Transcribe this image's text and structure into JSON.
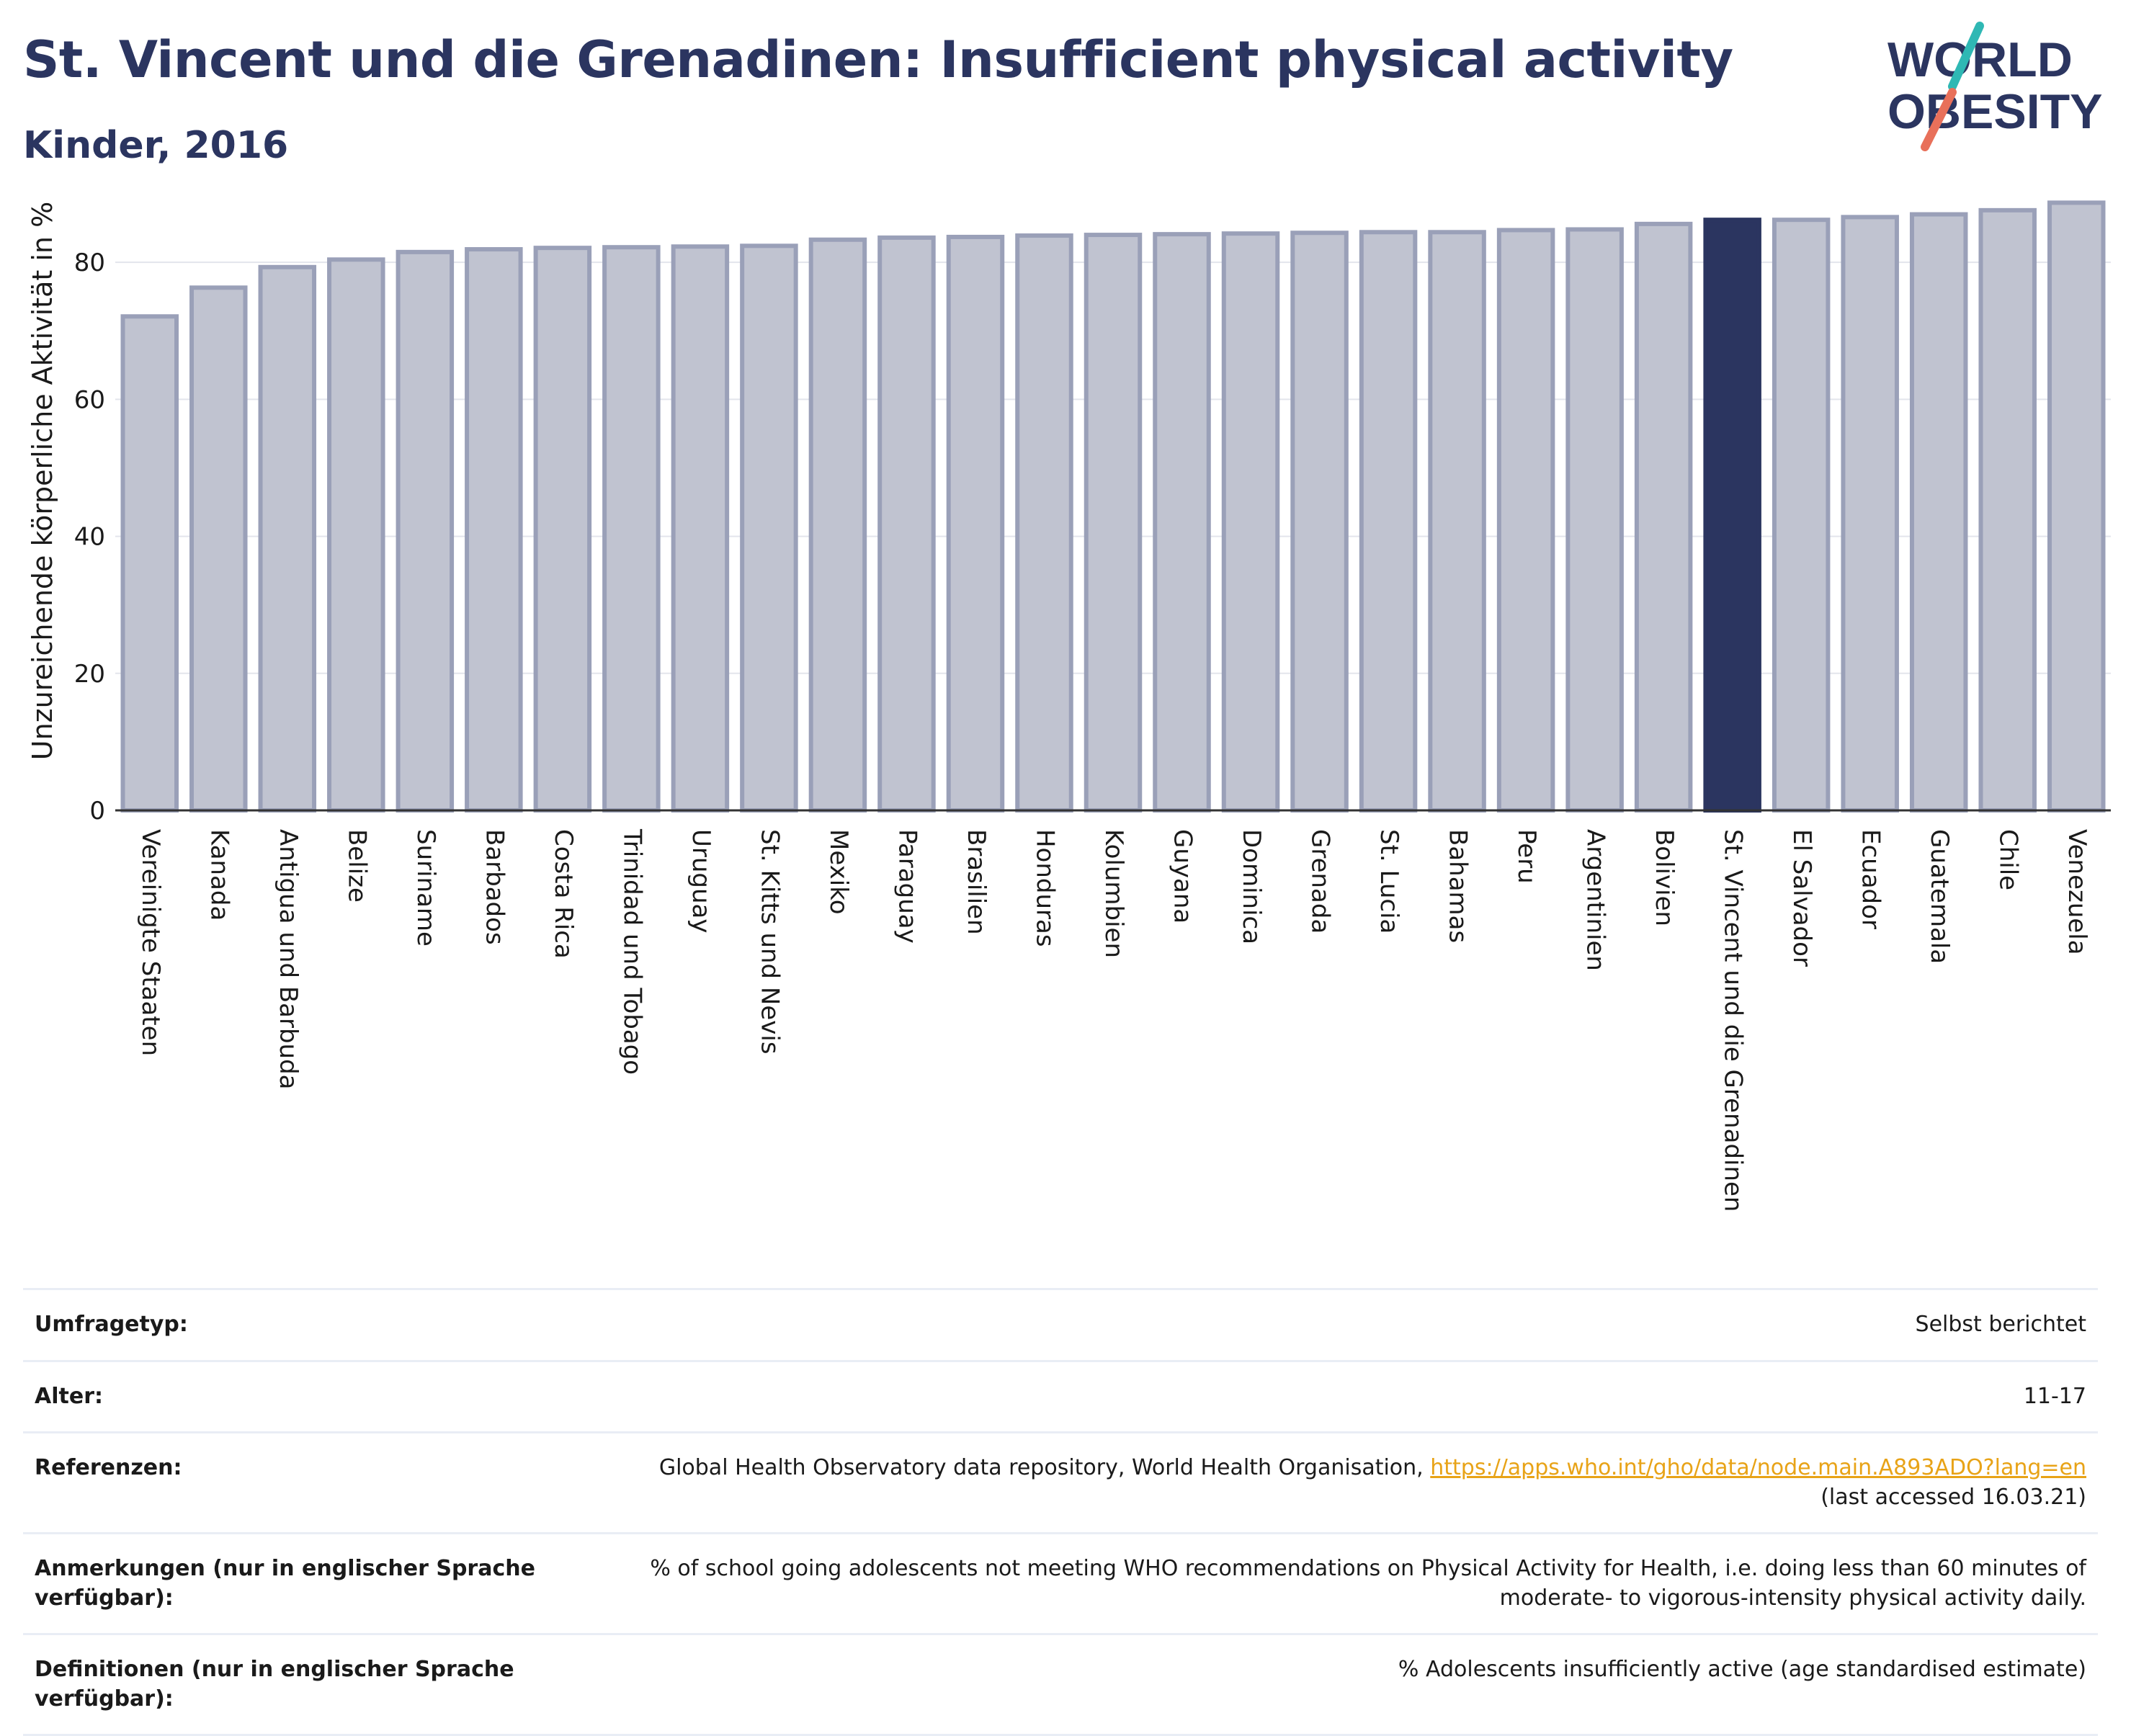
{
  "header": {
    "title": "St. Vincent und die Grenadinen: Insufficient physical activity",
    "subtitle": "Kinder, 2016"
  },
  "logo": {
    "line1": "WORLD",
    "line2": "OBESITY"
  },
  "colors": {
    "bar": "#c0c3d0",
    "bar_border": "#9aa0b8",
    "highlight": "#2b3560",
    "title": "#2b3560",
    "link": "#e8a317"
  },
  "chart_data": {
    "type": "bar",
    "title": "St. Vincent und die Grenadinen: Insufficient physical activity",
    "subtitle": "Kinder, 2016",
    "xlabel": "",
    "ylabel": "Unzureichende körperliche Aktivität in %",
    "ylim": [
      0,
      92
    ],
    "yticks": [
      0,
      20,
      40,
      60,
      80
    ],
    "grid": true,
    "highlight": "St. Vincent und die Grenadinen",
    "categories": [
      "Vereinigte Staaten",
      "Kanada",
      "Antigua und Barbuda",
      "Belize",
      "Suriname",
      "Barbados",
      "Costa Rica",
      "Trinidad und Tobago",
      "Uruguay",
      "St. Kitts und Nevis",
      "Mexiko",
      "Paraguay",
      "Brasilien",
      "Honduras",
      "Kolumbien",
      "Guyana",
      "Dominica",
      "Grenada",
      "St. Lucia",
      "Bahamas",
      "Peru",
      "Argentinien",
      "Bolivien",
      "St. Vincent und die Grenadinen",
      "El Salvador",
      "Ecuador",
      "Guatemala",
      "Chile",
      "Venezuela"
    ],
    "values": [
      72.1,
      76.3,
      79.3,
      80.4,
      81.5,
      81.9,
      82.1,
      82.2,
      82.3,
      82.4,
      83.3,
      83.6,
      83.7,
      83.9,
      84.0,
      84.1,
      84.2,
      84.3,
      84.4,
      84.4,
      84.7,
      84.8,
      85.6,
      86.2,
      86.2,
      86.6,
      87.0,
      87.6,
      88.7
    ]
  },
  "info": [
    {
      "key": "Umfragetyp:",
      "value": "Selbst berichtet"
    },
    {
      "key": "Alter:",
      "value": "11-17"
    },
    {
      "key": "Referenzen:",
      "value": "Global Health Observatory data repository, World Health Organisation,",
      "link": "https://apps.who.int/gho/data/node.main.A893ADO?lang=en",
      "value2": "(last accessed 16.03.21)"
    },
    {
      "key": "Anmerkungen (nur in englischer Sprache verfügbar):",
      "value": "% of school going adolescents not meeting WHO recommendations on Physical Activity for Health, i.e. doing less than 60 minutes of moderate- to vigorous-intensity physical activity daily."
    },
    {
      "key": "Definitionen (nur in englischer Sprache verfügbar):",
      "value": "% Adolescents insufficiently active (age standardised estimate)"
    }
  ]
}
